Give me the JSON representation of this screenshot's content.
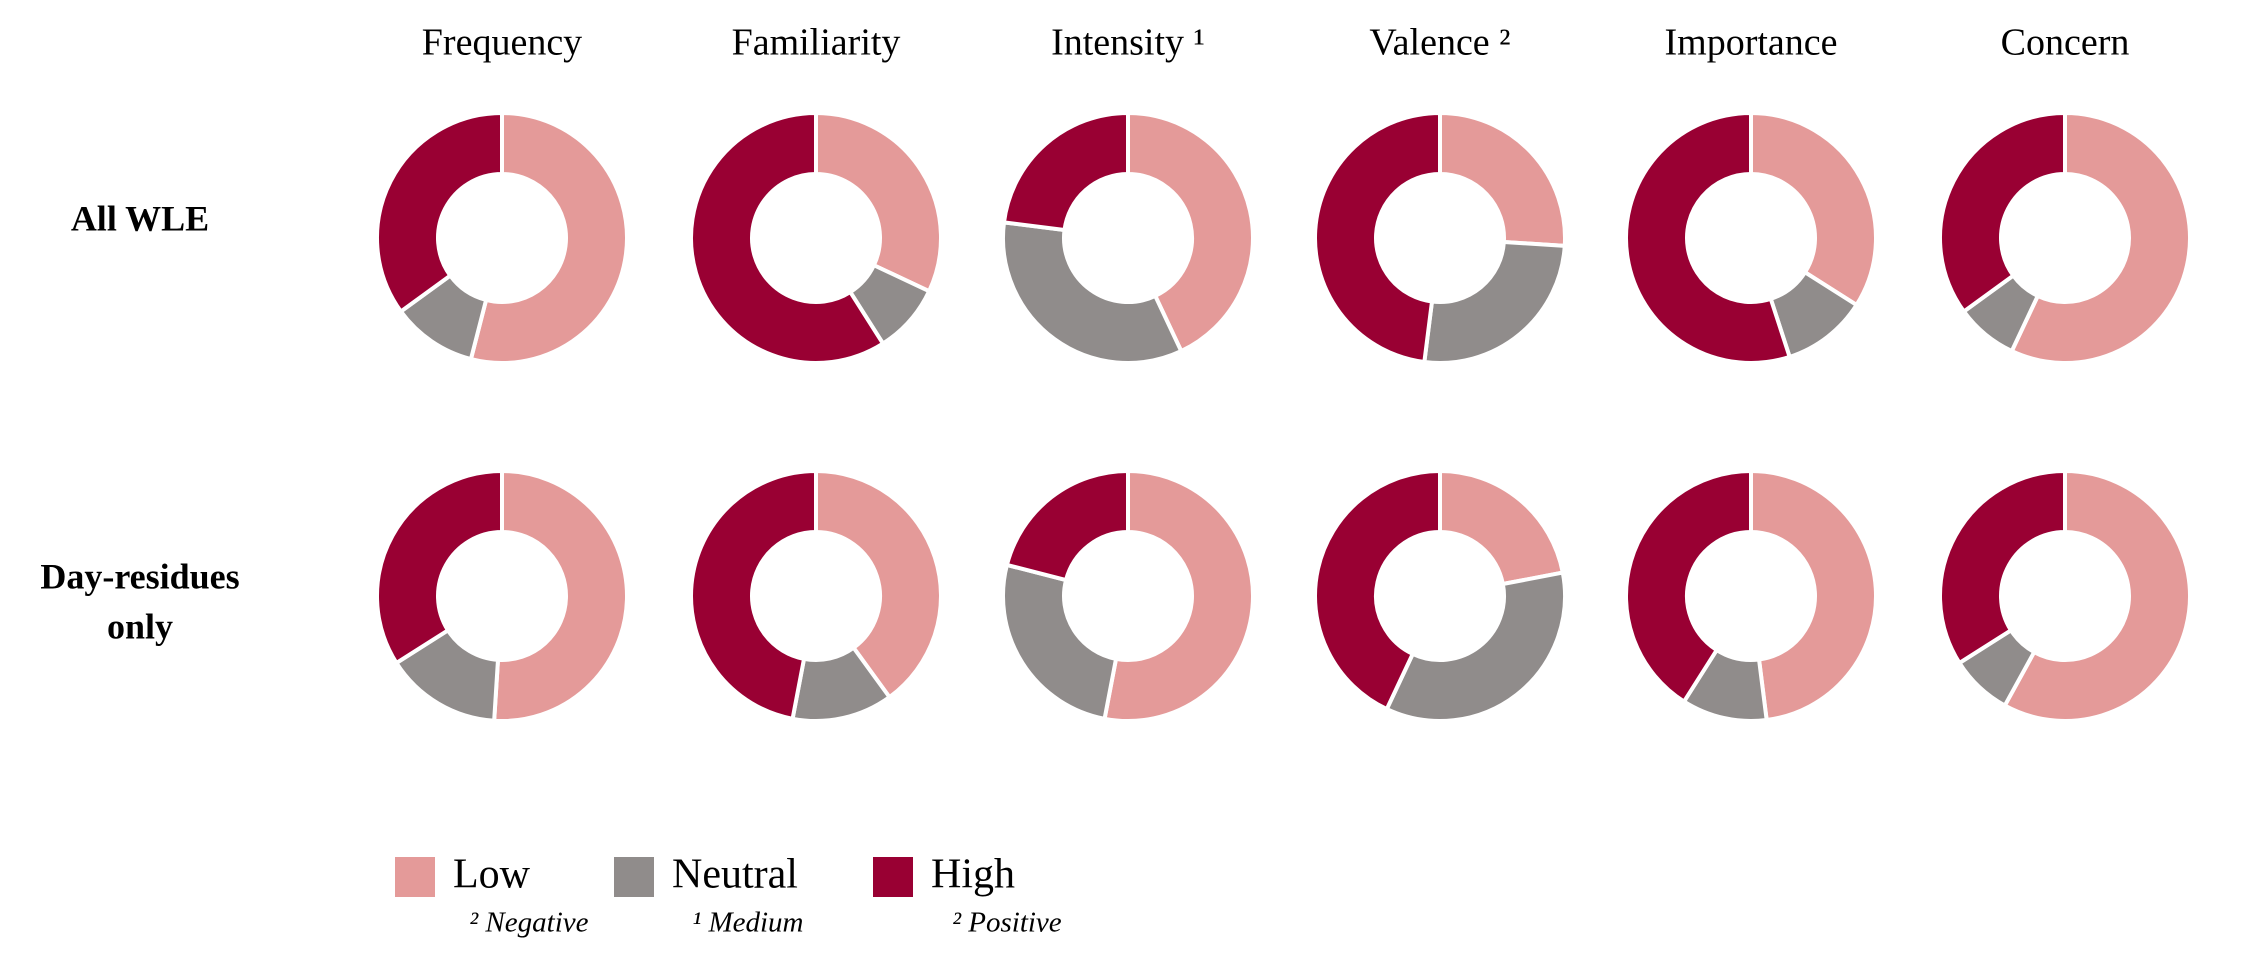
{
  "chart_data": {
    "type": "donut-grid",
    "columns": [
      "Frequency",
      "Familiarity",
      "Intensity ¹",
      "Valence ²",
      "Importance",
      "Concern"
    ],
    "rows": [
      {
        "label_lines": [
          "All WLE"
        ]
      },
      {
        "label_lines": [
          "Day-residues",
          "only"
        ]
      }
    ],
    "categories": [
      "Low",
      "Neutral",
      "High"
    ],
    "colors": {
      "Low": "#e49a99",
      "Neutral": "#908c8b",
      "High": "#990033"
    },
    "cells": [
      [
        {
          "column": "Frequency",
          "values": [
            54,
            11,
            35
          ]
        },
        {
          "column": "Familiarity",
          "values": [
            32,
            9,
            59
          ]
        },
        {
          "column": "Intensity ¹",
          "values": [
            43,
            34,
            23
          ]
        },
        {
          "column": "Valence ²",
          "values": [
            26,
            26,
            48
          ]
        },
        {
          "column": "Importance",
          "values": [
            34,
            11,
            55
          ]
        },
        {
          "column": "Concern",
          "values": [
            57,
            8,
            35
          ]
        }
      ],
      [
        {
          "column": "Frequency",
          "values": [
            51,
            15,
            34
          ]
        },
        {
          "column": "Familiarity",
          "values": [
            40,
            13,
            47
          ]
        },
        {
          "column": "Intensity ¹",
          "values": [
            53,
            26,
            21
          ]
        },
        {
          "column": "Valence ²",
          "values": [
            22,
            35,
            43
          ]
        },
        {
          "column": "Importance",
          "values": [
            48,
            11,
            41
          ]
        },
        {
          "column": "Concern",
          "values": [
            58,
            8,
            34
          ]
        }
      ]
    ],
    "legend": [
      {
        "key": "Low",
        "label": "Low",
        "sub": "² Negative"
      },
      {
        "key": "Neutral",
        "label": "Neutral",
        "sub": "¹ Medium"
      },
      {
        "key": "High",
        "label": "High",
        "sub": "² Positive"
      }
    ]
  }
}
